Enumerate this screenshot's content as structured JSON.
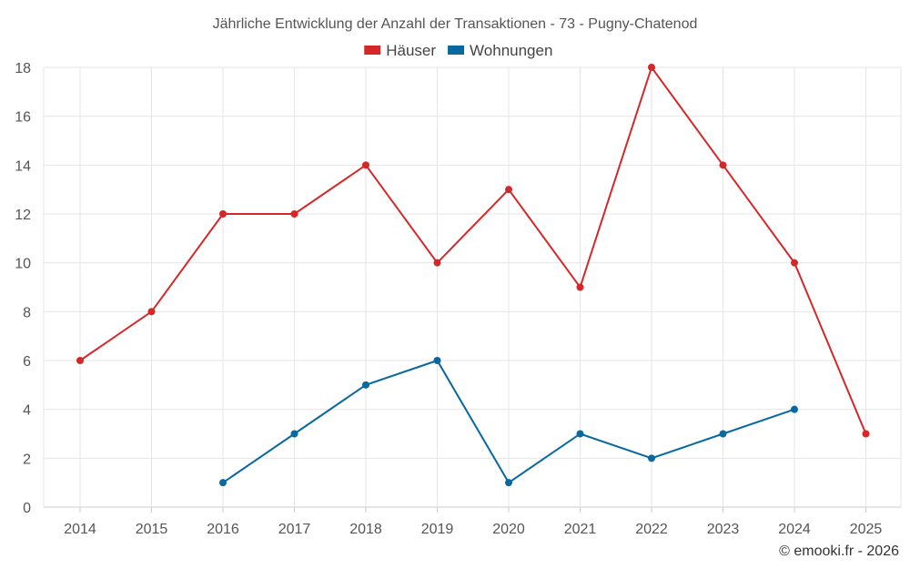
{
  "chart_data": {
    "type": "line",
    "title": "Jährliche Entwicklung der Anzahl der Transaktionen - 73 - Pugny-Chatenod",
    "categories": [
      "2014",
      "2015",
      "2016",
      "2017",
      "2018",
      "2019",
      "2020",
      "2021",
      "2022",
      "2023",
      "2024",
      "2025"
    ],
    "series": [
      {
        "name": "Häuser",
        "color": "#d62728",
        "values": [
          6,
          8,
          12,
          12,
          14,
          10,
          13,
          9,
          18,
          14,
          10,
          3
        ]
      },
      {
        "name": "Wohnungen",
        "color": "#0868a0",
        "values": [
          null,
          null,
          1,
          null,
          5,
          6,
          1,
          3,
          2,
          3,
          4,
          null
        ]
      }
    ],
    "wohnungen_2017": 3,
    "ylim": [
      0,
      18
    ],
    "yticks": [
      "0",
      "2",
      "4",
      "6",
      "8",
      "10",
      "12",
      "14",
      "16",
      "18"
    ],
    "xlabel": "",
    "ylabel": "",
    "legend_position": "top-center"
  },
  "credit": "© emooki.fr - 2026"
}
